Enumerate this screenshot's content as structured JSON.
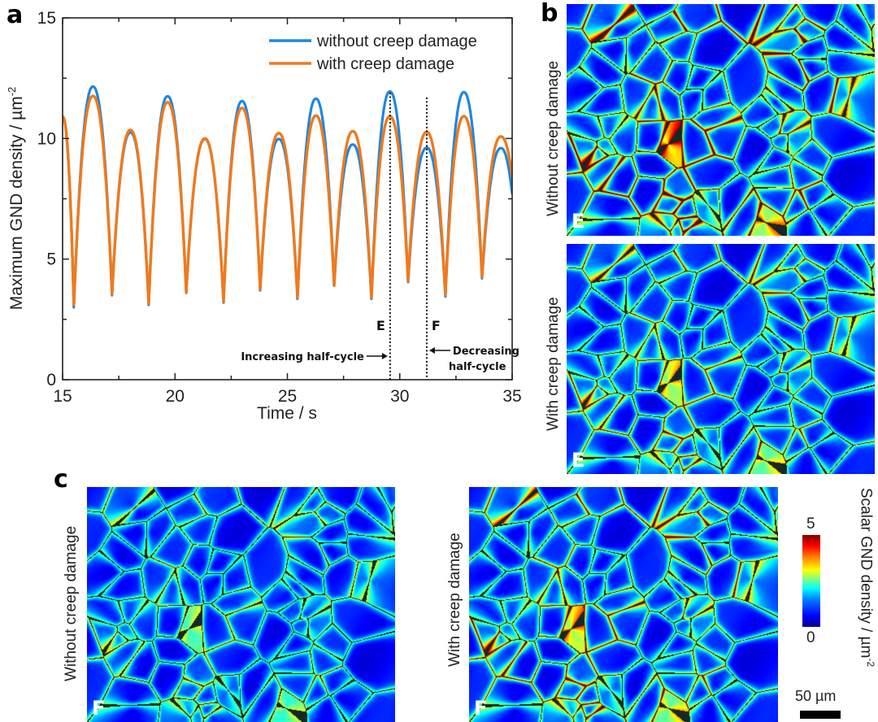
{
  "figure": {
    "panel_labels": {
      "a": "a",
      "b": "b",
      "c": "c"
    },
    "panel_b": {
      "top_label": "Without creep damage",
      "top_tag": "E",
      "bottom_label": "With creep damage",
      "bottom_tag": "E"
    },
    "panel_c": {
      "left_label": "Without creep damage",
      "left_tag": "F",
      "right_label": "With creep damage",
      "right_tag": "F"
    },
    "colorbar": {
      "title": "Scalar GND density / µm",
      "title_sup": "-2",
      "max_label": "5",
      "min_label": "0",
      "colormap": "jet",
      "range": [
        0,
        5
      ]
    },
    "scale_bar": {
      "label": "50 µm"
    }
  },
  "chart_data": {
    "type": "line",
    "title": "",
    "xlabel": "Time / s",
    "ylabel": "Maximum GND density / µm",
    "ylabel_sup": "-2",
    "xlim": [
      15,
      35
    ],
    "ylim": [
      0,
      15
    ],
    "xticks": [
      15,
      20,
      25,
      30,
      35
    ],
    "yticks": [
      0,
      5,
      10,
      15
    ],
    "xtick_labels": [
      "15",
      "20",
      "25",
      "30",
      "35"
    ],
    "ytick_labels": [
      "0",
      "5",
      "10",
      "15"
    ],
    "grid": false,
    "legend_position": "top-right",
    "series": [
      {
        "name": "without creep damage",
        "color": "#1f86e0",
        "start_value": 10.9,
        "end_value": 7.7,
        "troughs": [
          {
            "x": 15.5,
            "y": 3.0
          },
          {
            "x": 17.2,
            "y": 3.5
          },
          {
            "x": 18.83,
            "y": 3.1
          },
          {
            "x": 20.5,
            "y": 3.6
          },
          {
            "x": 22.16,
            "y": 3.2
          },
          {
            "x": 23.79,
            "y": 3.7
          },
          {
            "x": 25.45,
            "y": 3.35
          },
          {
            "x": 27.08,
            "y": 3.9
          },
          {
            "x": 28.74,
            "y": 3.35
          },
          {
            "x": 30.37,
            "y": 4.05
          },
          {
            "x": 32.03,
            "y": 3.45
          },
          {
            "x": 33.66,
            "y": 4.2
          }
        ],
        "peaks": [
          {
            "x": 16.35,
            "y": 12.15
          },
          {
            "x": 18.02,
            "y": 10.25
          },
          {
            "x": 19.67,
            "y": 11.75
          },
          {
            "x": 21.33,
            "y": 9.98
          },
          {
            "x": 22.98,
            "y": 11.55
          },
          {
            "x": 24.62,
            "y": 9.98
          },
          {
            "x": 26.27,
            "y": 11.65
          },
          {
            "x": 27.91,
            "y": 9.75
          },
          {
            "x": 29.56,
            "y": 11.95
          },
          {
            "x": 31.2,
            "y": 9.62
          },
          {
            "x": 32.85,
            "y": 11.92
          },
          {
            "x": 34.5,
            "y": 9.6
          }
        ]
      },
      {
        "name": "with creep damage",
        "color": "#f07a1c",
        "start_value": 10.9,
        "end_value": 8.4,
        "troughs": [
          {
            "x": 15.5,
            "y": 3.1
          },
          {
            "x": 17.2,
            "y": 3.55
          },
          {
            "x": 18.83,
            "y": 3.15
          },
          {
            "x": 20.5,
            "y": 3.6
          },
          {
            "x": 22.16,
            "y": 3.25
          },
          {
            "x": 23.79,
            "y": 3.75
          },
          {
            "x": 25.45,
            "y": 3.4
          },
          {
            "x": 27.08,
            "y": 3.9
          },
          {
            "x": 28.74,
            "y": 3.4
          },
          {
            "x": 30.37,
            "y": 4.1
          },
          {
            "x": 32.03,
            "y": 3.5
          },
          {
            "x": 33.66,
            "y": 4.25
          }
        ],
        "peaks": [
          {
            "x": 16.35,
            "y": 11.76
          },
          {
            "x": 18.02,
            "y": 10.35
          },
          {
            "x": 19.67,
            "y": 11.5
          },
          {
            "x": 21.33,
            "y": 10.0
          },
          {
            "x": 22.98,
            "y": 11.26
          },
          {
            "x": 24.62,
            "y": 10.22
          },
          {
            "x": 26.27,
            "y": 10.95
          },
          {
            "x": 27.91,
            "y": 10.3
          },
          {
            "x": 29.56,
            "y": 10.92
          },
          {
            "x": 31.2,
            "y": 10.27
          },
          {
            "x": 32.85,
            "y": 10.92
          },
          {
            "x": 34.5,
            "y": 10.08
          }
        ]
      }
    ],
    "annotations": [
      {
        "type": "vline",
        "x": 29.57,
        "label": "E",
        "y_top": 11.9,
        "y_bottom": 0
      },
      {
        "type": "vline",
        "x": 31.2,
        "label": "F",
        "y_top": 11.7,
        "y_bottom": 0
      },
      {
        "type": "arrow-text",
        "text": "Increasing half-cycle",
        "points_to": "E"
      },
      {
        "type": "arrow-text",
        "text": "Decreasing half-cycle",
        "points_to": "F"
      }
    ]
  }
}
